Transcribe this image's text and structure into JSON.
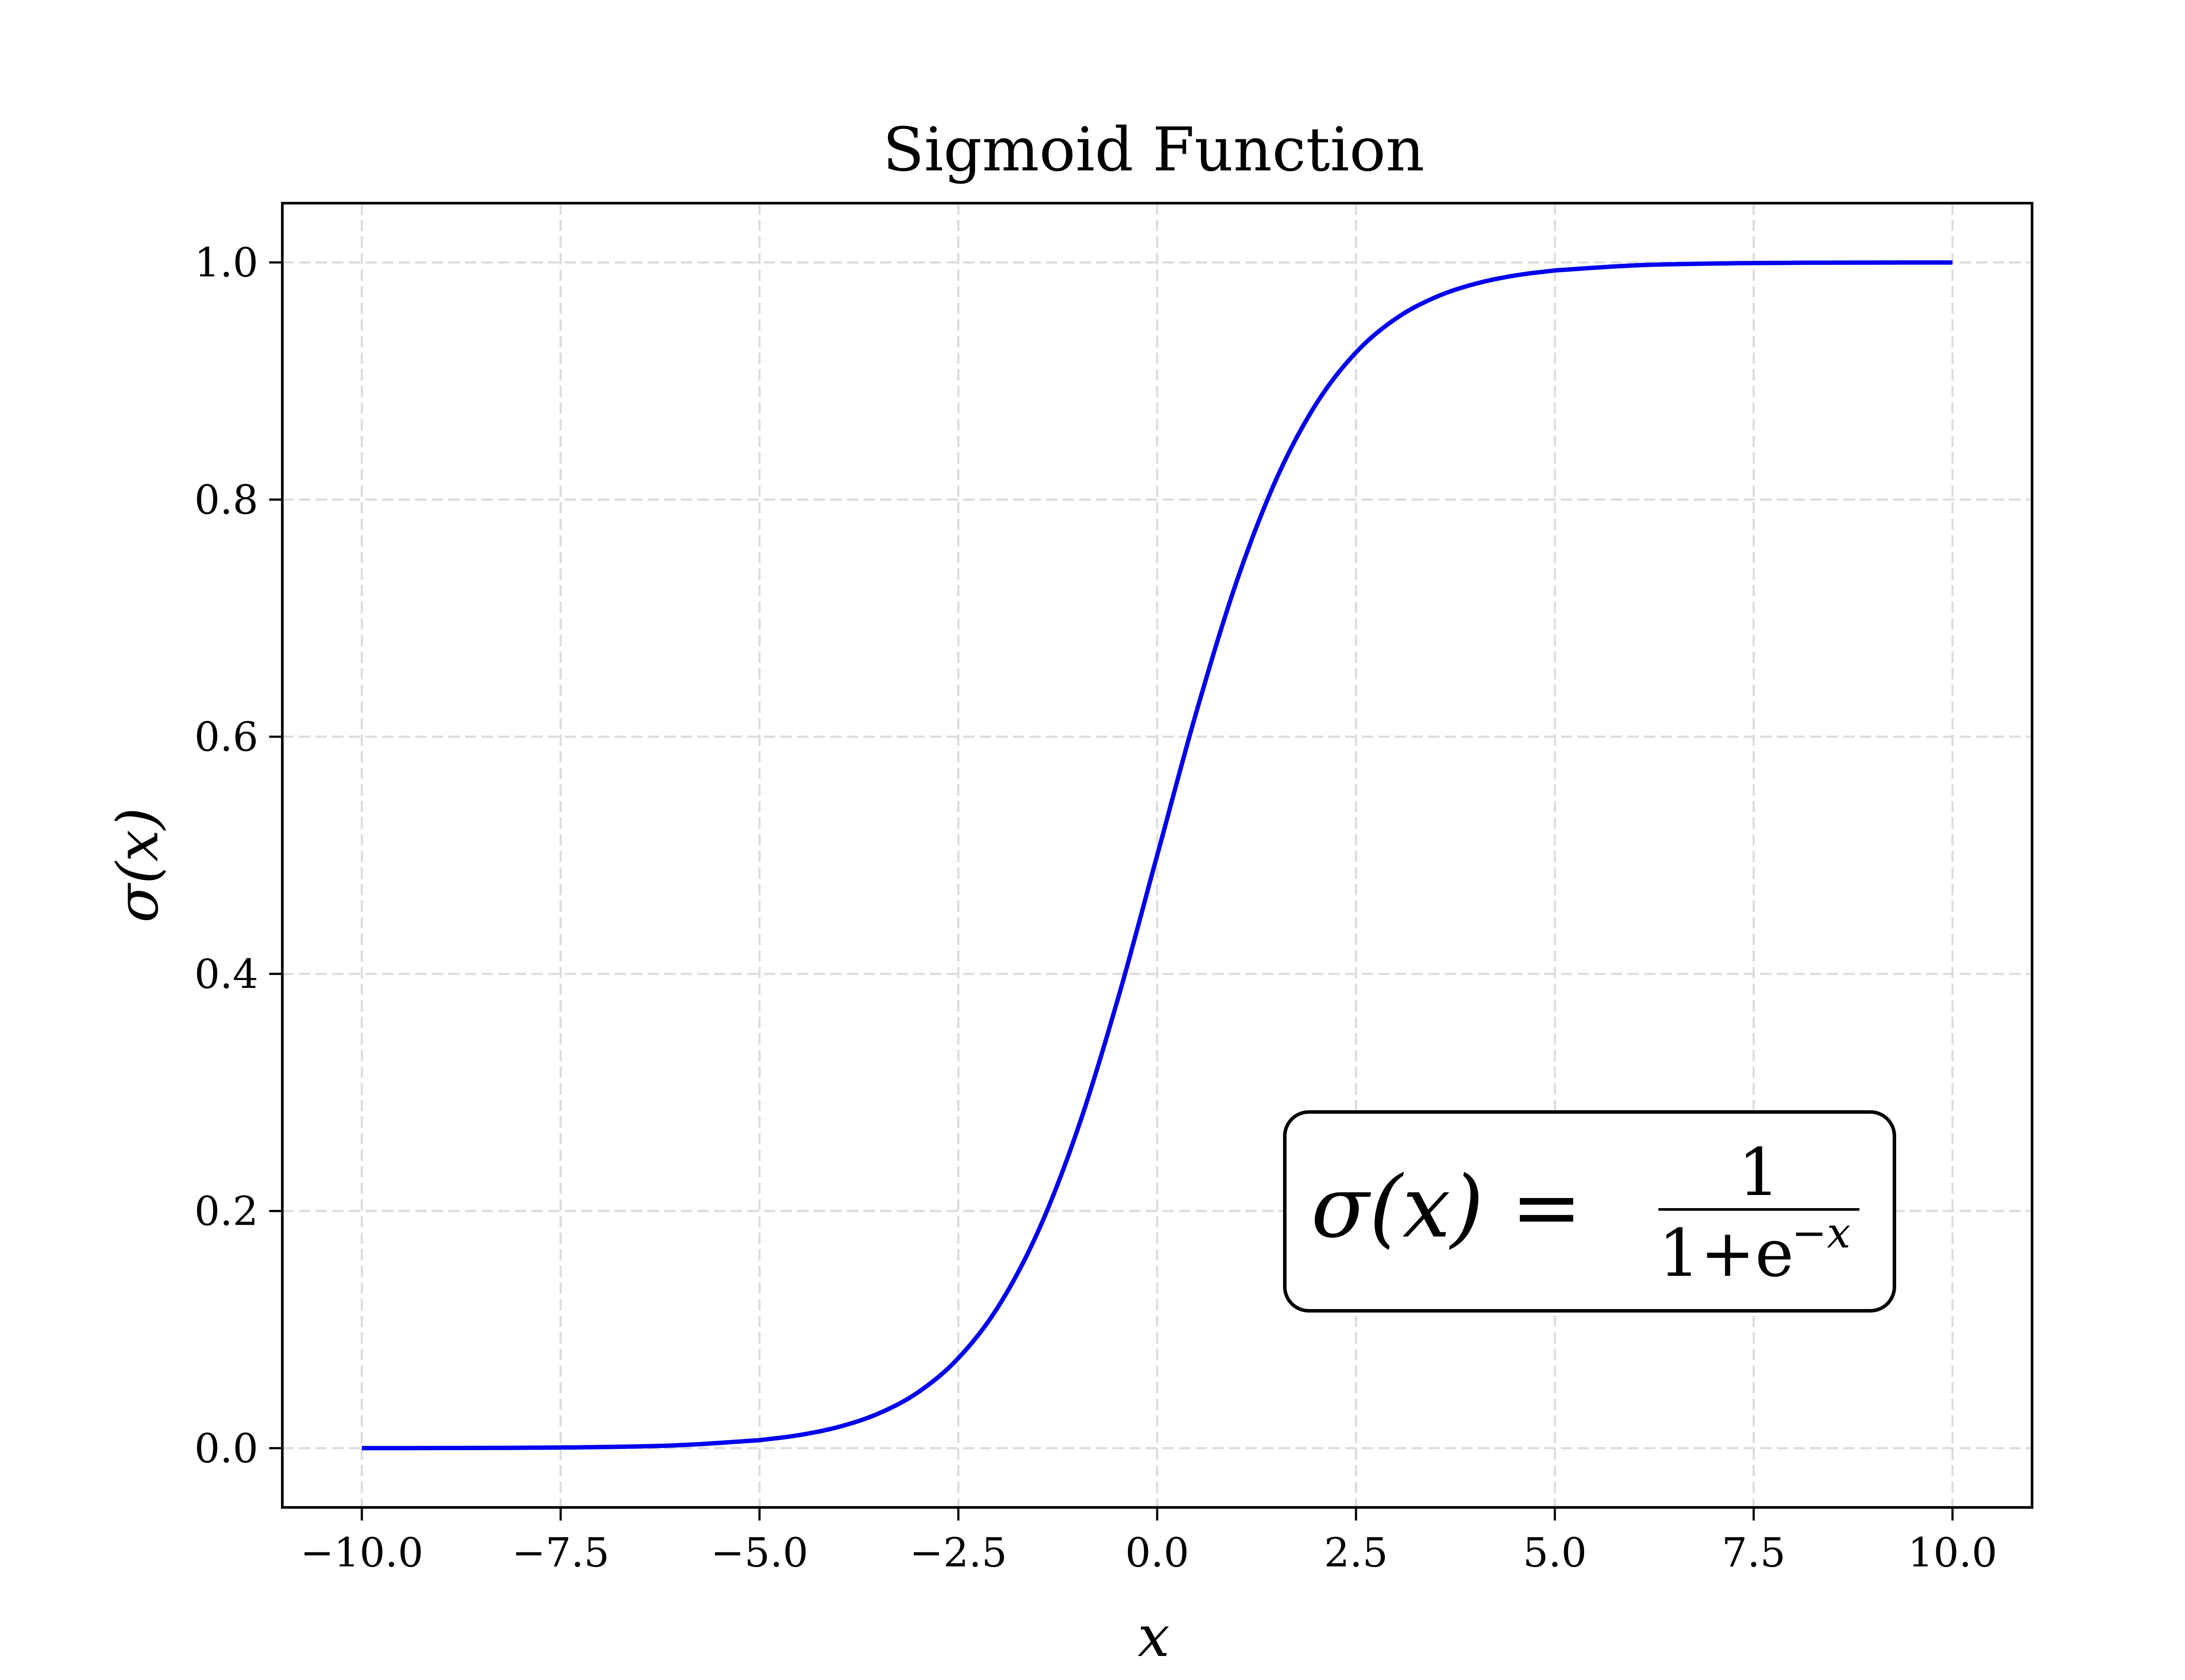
{
  "chart_data": {
    "type": "line",
    "title": "Sigmoid Function",
    "xlabel": "x",
    "ylabel": "σ(x)",
    "xlim": [
      -11,
      11
    ],
    "ylim": [
      -0.05,
      1.05
    ],
    "xticks": [
      -10,
      -7.5,
      -5,
      -2.5,
      0,
      2.5,
      5,
      7.5,
      10
    ],
    "xtick_labels": [
      "−10.0",
      "−7.5",
      "−5.0",
      "−2.5",
      "0.0",
      "2.5",
      "5.0",
      "7.5",
      "10.0"
    ],
    "yticks": [
      0,
      0.2,
      0.4,
      0.6,
      0.8,
      1.0
    ],
    "ytick_labels": [
      "0.0",
      "0.2",
      "0.4",
      "0.6",
      "0.8",
      "1.0"
    ],
    "grid": true,
    "grid_style": "dashed",
    "series": [
      {
        "color": "#0000ee",
        "x": [
          -10,
          -9,
          -8,
          -7,
          -6,
          -5,
          -4.5,
          -4,
          -3.5,
          -3,
          -2.5,
          -2,
          -1.5,
          -1,
          -0.5,
          0,
          0.5,
          1,
          1.5,
          2,
          2.5,
          3,
          3.5,
          4,
          4.5,
          5,
          6,
          7,
          8,
          9,
          10
        ],
        "y": [
          0.0,
          0.0001,
          0.0003,
          0.0009,
          0.0025,
          0.0067,
          0.011,
          0.018,
          0.0293,
          0.0474,
          0.0759,
          0.1192,
          0.1824,
          0.2689,
          0.3775,
          0.5,
          0.6225,
          0.7311,
          0.8176,
          0.8808,
          0.9241,
          0.9526,
          0.9707,
          0.982,
          0.989,
          0.9933,
          0.9975,
          0.9991,
          0.9997,
          0.9999,
          1.0
        ]
      }
    ],
    "annotation": {
      "lhs": "σ(x) =",
      "numerator": "1",
      "denominator": "1+e",
      "exponent": "−x",
      "box": "rounded",
      "placement": "lower-right"
    }
  }
}
